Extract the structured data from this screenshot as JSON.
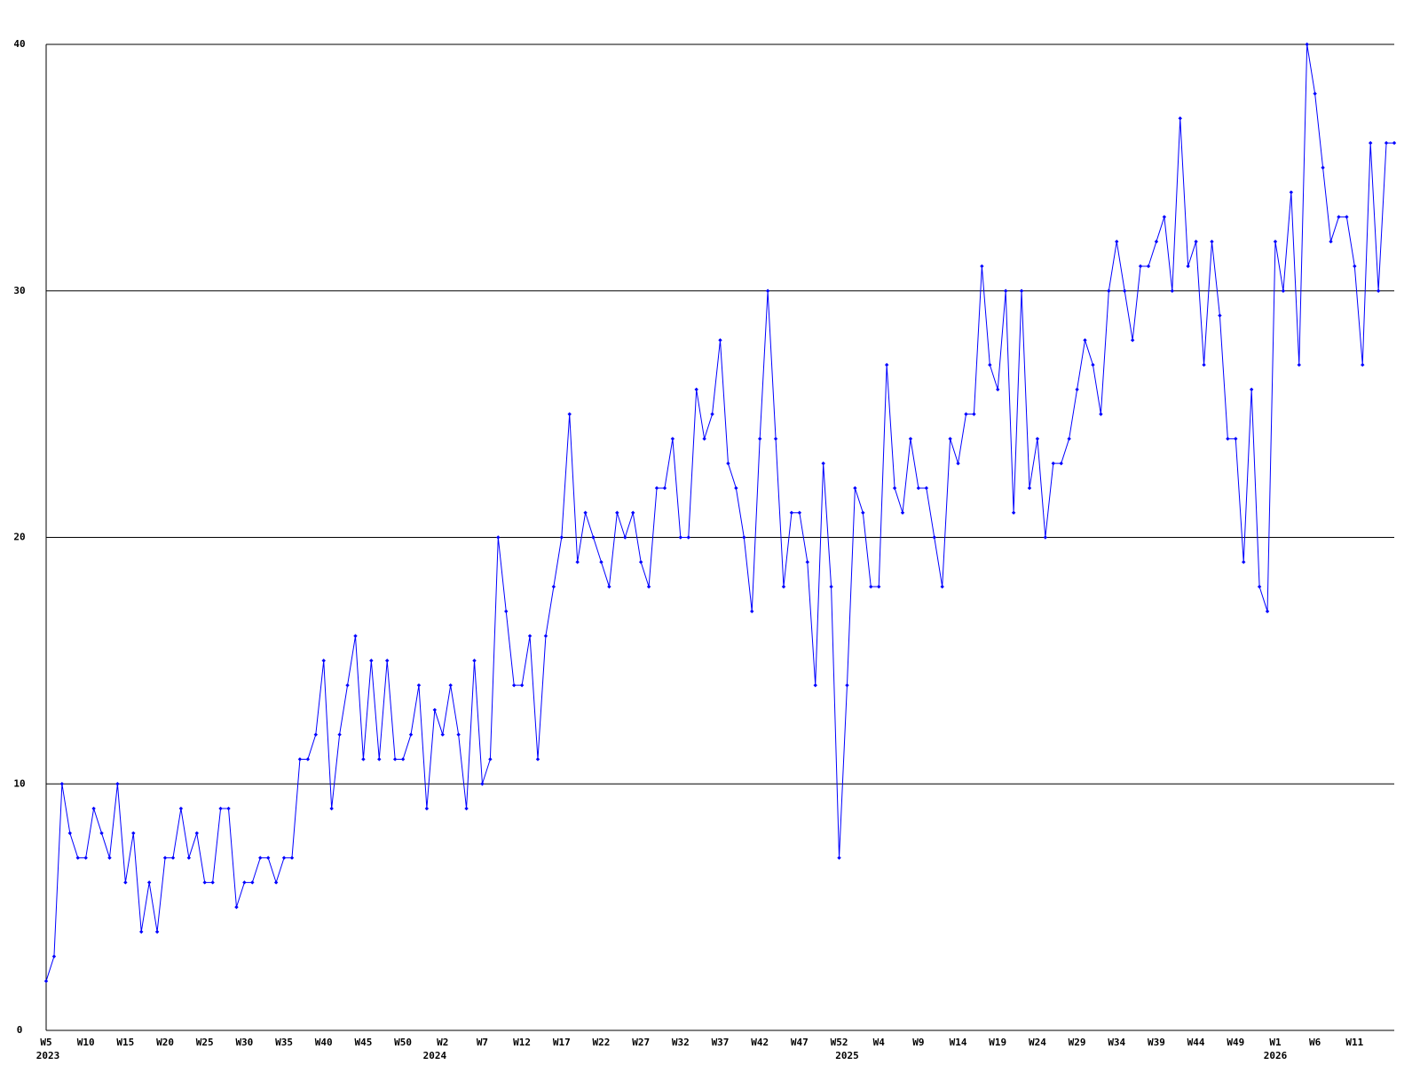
{
  "chart_data": {
    "type": "line",
    "categories": [
      "W5",
      null,
      null,
      null,
      null,
      "W10",
      null,
      null,
      null,
      null,
      "W15",
      null,
      null,
      null,
      null,
      "W20",
      null,
      null,
      null,
      null,
      "W25",
      null,
      null,
      null,
      null,
      "W30",
      null,
      null,
      null,
      null,
      "W35",
      null,
      null,
      null,
      null,
      "W40",
      null,
      null,
      null,
      null,
      "W45",
      null,
      null,
      null,
      null,
      "W50",
      null,
      null,
      null,
      null,
      "W2",
      null,
      null,
      null,
      null,
      "W7",
      null,
      null,
      null,
      null,
      "W12",
      null,
      null,
      null,
      null,
      "W17",
      null,
      null,
      null,
      null,
      "W22",
      null,
      null,
      null,
      null,
      "W27",
      null,
      null,
      null,
      null,
      "W32",
      null,
      null,
      null,
      null,
      "W37",
      null,
      null,
      null,
      null,
      "W42",
      null,
      null,
      null,
      null,
      "W47",
      null,
      null,
      null,
      null,
      "W52",
      null,
      null,
      null,
      null,
      "W4",
      null,
      null,
      null,
      null,
      "W9",
      null,
      null,
      null,
      null,
      "W14",
      null,
      null,
      null,
      null,
      "W19",
      null,
      null,
      null,
      null,
      "W24",
      null,
      null,
      null,
      null,
      "W29",
      null,
      null,
      null,
      null,
      "W34",
      null,
      null,
      null,
      null,
      "W39",
      null,
      null,
      null,
      null,
      "W44",
      null,
      null,
      null,
      null,
      "W49",
      null,
      null,
      null,
      null,
      "W1",
      null,
      null,
      null,
      null,
      "W6",
      null,
      null,
      null,
      null,
      "W11",
      null,
      null,
      null,
      null,
      null
    ],
    "category_years": [
      "2023",
      null,
      null,
      null,
      null,
      null,
      null,
      null,
      null,
      null,
      null,
      null,
      null,
      null,
      null,
      null,
      null,
      null,
      null,
      null,
      null,
      null,
      null,
      null,
      null,
      null,
      null,
      null,
      null,
      null,
      null,
      null,
      null,
      null,
      null,
      null,
      null,
      null,
      null,
      null,
      null,
      null,
      null,
      null,
      null,
      null,
      null,
      null,
      null,
      "2024",
      null,
      null,
      null,
      null,
      null,
      null,
      null,
      null,
      null,
      null,
      null,
      null,
      null,
      null,
      null,
      null,
      null,
      null,
      null,
      null,
      null,
      null,
      null,
      null,
      null,
      null,
      null,
      null,
      null,
      null,
      null,
      null,
      null,
      null,
      null,
      null,
      null,
      null,
      null,
      null,
      null,
      null,
      null,
      null,
      null,
      null,
      null,
      null,
      null,
      null,
      null,
      "2025",
      null,
      null,
      null,
      null,
      null,
      null,
      null,
      null,
      null,
      null,
      null,
      null,
      null,
      null,
      null,
      null,
      null,
      null,
      null,
      null,
      null,
      null,
      null,
      null,
      null,
      null,
      null,
      null,
      null,
      null,
      null,
      null,
      null,
      null,
      null,
      null,
      null,
      null,
      null,
      null,
      null,
      null,
      null,
      null,
      null,
      null,
      null,
      null,
      null,
      null,
      null,
      null,
      null,
      "2026",
      null,
      null,
      null,
      null,
      null,
      null,
      null,
      null,
      null,
      null,
      null,
      null,
      null,
      null,
      null
    ],
    "values": [
      2,
      3,
      10,
      8,
      7,
      7,
      9,
      8,
      7,
      10,
      6,
      8,
      4,
      6,
      4,
      7,
      7,
      9,
      7,
      8,
      6,
      6,
      9,
      9,
      5,
      6,
      6,
      7,
      7,
      6,
      7,
      7,
      11,
      11,
      12,
      15,
      9,
      12,
      14,
      16,
      11,
      15,
      11,
      15,
      11,
      11,
      12,
      14,
      9,
      13,
      12,
      14,
      12,
      9,
      15,
      10,
      11,
      20,
      17,
      14,
      14,
      16,
      11,
      16,
      18,
      20,
      25,
      19,
      21,
      20,
      19,
      18,
      21,
      20,
      21,
      19,
      18,
      22,
      22,
      24,
      20,
      20,
      26,
      24,
      25,
      28,
      23,
      22,
      20,
      17,
      24,
      30,
      24,
      18,
      21,
      21,
      19,
      14,
      23,
      18,
      7,
      14,
      22,
      21,
      18,
      18,
      27,
      22,
      21,
      24,
      22,
      22,
      20,
      18,
      24,
      23,
      25,
      25,
      31,
      27,
      26,
      30,
      21,
      30,
      22,
      24,
      20,
      23,
      23,
      24,
      26,
      28,
      27,
      25,
      30,
      32,
      30,
      28,
      31,
      31,
      32,
      33,
      30,
      37,
      31,
      32,
      27,
      32,
      29,
      24,
      24,
      19,
      26,
      18,
      17,
      32,
      30,
      34,
      27,
      40,
      38,
      35,
      32,
      33,
      33,
      31,
      27,
      36,
      30,
      36,
      36
    ],
    "color": "#0000ff",
    "ylim": [
      0,
      40
    ],
    "yticks": [
      0,
      10,
      20,
      30,
      40
    ],
    "grid": true
  }
}
